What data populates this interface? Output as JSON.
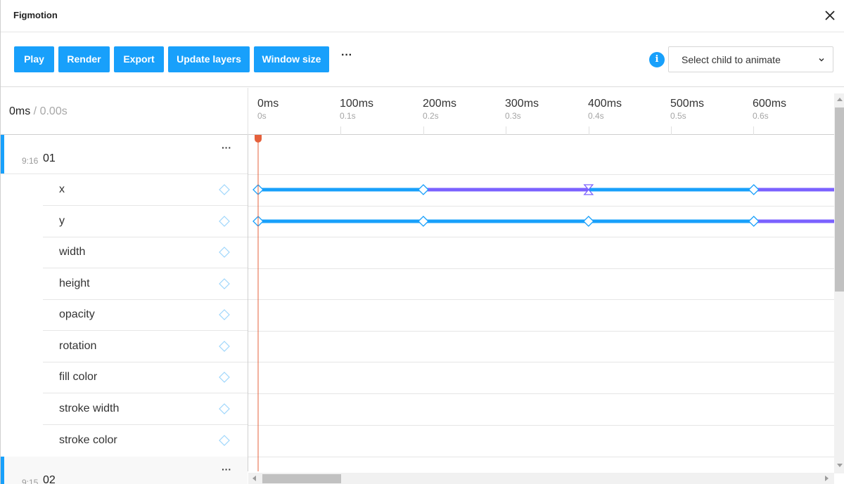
{
  "app": {
    "title": "Figmotion"
  },
  "toolbar": {
    "buttons": [
      {
        "label": "Play"
      },
      {
        "label": "Render"
      },
      {
        "label": "Export"
      },
      {
        "label": "Update layers"
      },
      {
        "label": "Window size"
      }
    ],
    "more_label": "···",
    "info_label": "i",
    "select_placeholder": "Select child to animate"
  },
  "timeline_header": {
    "current_time": "0ms",
    "separator": " / ",
    "total_time": "0.00s",
    "ticks": [
      {
        "ms": "0ms",
        "sec": "0s"
      },
      {
        "ms": "100ms",
        "sec": "0.1s"
      },
      {
        "ms": "200ms",
        "sec": "0.2s"
      },
      {
        "ms": "300ms",
        "sec": "0.3s"
      },
      {
        "ms": "400ms",
        "sec": "0.4s"
      },
      {
        "ms": "500ms",
        "sec": "0.5s"
      },
      {
        "ms": "600ms",
        "sec": "0.6s"
      }
    ]
  },
  "layers": [
    {
      "id": "9:16",
      "name": "01",
      "more_label": "···",
      "properties": [
        "x",
        "y",
        "width",
        "height",
        "opacity",
        "rotation",
        "fill color",
        "stroke width",
        "stroke color"
      ]
    },
    {
      "id": "9:15",
      "name": "02",
      "more_label": "···"
    }
  ],
  "tracks": {
    "x": {
      "keyframes_ms": [
        0,
        200,
        400,
        600
      ],
      "segments": [
        {
          "from_ms": 0,
          "to_ms": 200,
          "easing": "linear"
        },
        {
          "from_ms": 200,
          "to_ms": 400,
          "easing": "eased"
        },
        {
          "from_ms": 400,
          "to_ms": 600,
          "easing": "linear"
        },
        {
          "from_ms": 600,
          "to_ms": null,
          "easing": "eased"
        }
      ],
      "selected_keyframe_ms": 400
    },
    "y": {
      "keyframes_ms": [
        0,
        200,
        400,
        600
      ],
      "segments": [
        {
          "from_ms": 0,
          "to_ms": 200,
          "easing": "linear"
        },
        {
          "from_ms": 200,
          "to_ms": 400,
          "easing": "linear"
        },
        {
          "from_ms": 400,
          "to_ms": 600,
          "easing": "linear"
        },
        {
          "from_ms": 600,
          "to_ms": null,
          "easing": "eased"
        }
      ]
    }
  },
  "playhead_ms": 0,
  "colors": {
    "accent": "#18a0fb",
    "eased": "#7b61ff",
    "playhead": "#e5603b"
  },
  "icons": {
    "close": "close-icon",
    "info": "info-icon",
    "chevron": "chevron-down-icon",
    "keyframe": "diamond-icon"
  }
}
